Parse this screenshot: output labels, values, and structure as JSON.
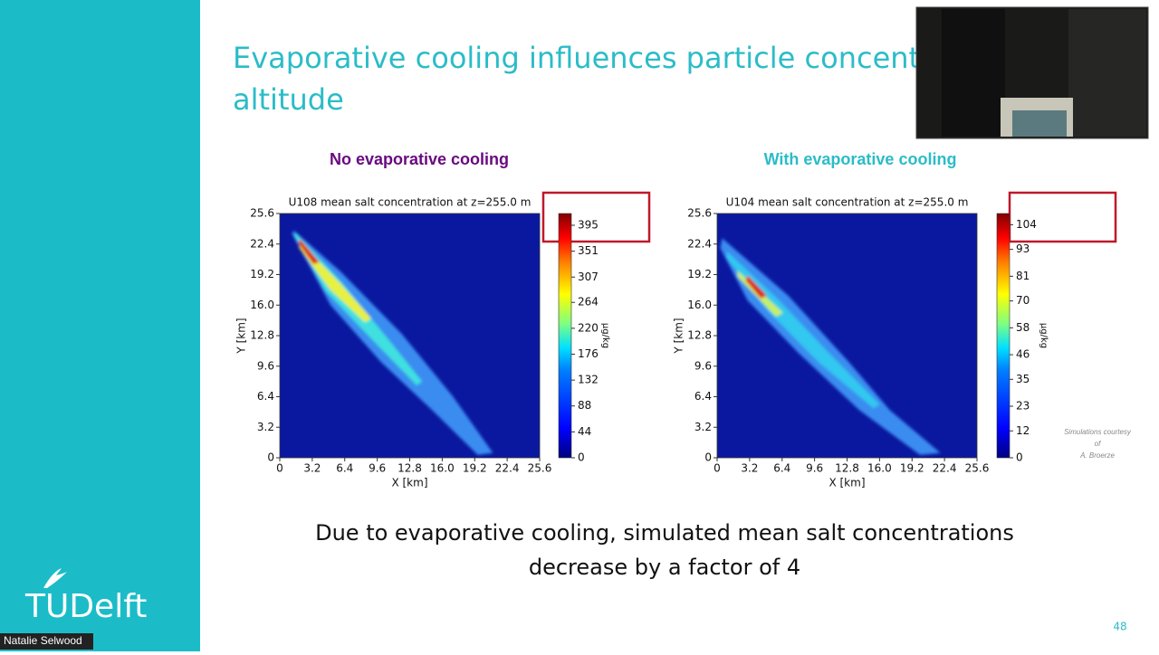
{
  "slide": {
    "title_lines": [
      "Evaporative cooling influences particle concentra",
      "altitude"
    ],
    "panel_headings": [
      "No evaporative cooling",
      "With evaporative cooling"
    ],
    "caption_lines": [
      "Due to evaporative cooling, simulated mean salt concentrations",
      "decrease by a factor of 4"
    ],
    "credit_lines": [
      "Simulations courtesy",
      "of",
      "A. Broerze"
    ],
    "page_number": "48",
    "logo": "TUDelft"
  },
  "participant": {
    "name": "Natalie Selwood"
  },
  "chart_data": [
    {
      "type": "heatmap",
      "title": "U108 mean salt concentration at z=255.0 m",
      "xlabel": "X [km]",
      "ylabel": "Y [km]",
      "xlim": [
        0,
        25.6
      ],
      "ylim": [
        0,
        25.6
      ],
      "xticks": [
        0,
        3.2,
        6.4,
        9.6,
        12.8,
        {
          "value": 16,
          "label": "16.0"
        },
        19.2,
        22.4,
        25.6
      ],
      "yticks": [
        0,
        3.2,
        6.4,
        9.6,
        12.8,
        {
          "value": 16,
          "label": "16.0"
        },
        19.2,
        22.4,
        25.6
      ],
      "colorbar": {
        "label": "µg/kg",
        "lim": [
          0,
          415
        ],
        "ticks": [
          0,
          44,
          88,
          132,
          176,
          220,
          264,
          307,
          351,
          395
        ]
      }
    },
    {
      "type": "heatmap",
      "title": "U104 mean salt concentration at z=255.0 m",
      "xlabel": "X [km]",
      "ylabel": "Y [km]",
      "xlim": [
        0,
        25.6
      ],
      "ylim": [
        0,
        25.6
      ],
      "xticks": [
        0,
        3.2,
        6.4,
        9.6,
        12.8,
        {
          "value": 16,
          "label": "16.0"
        },
        19.2,
        22.4,
        25.6
      ],
      "yticks": [
        0,
        3.2,
        6.4,
        9.6,
        12.8,
        {
          "value": 16,
          "label": "16.0"
        },
        19.2,
        22.4,
        25.6
      ],
      "colorbar": {
        "label": "µg/kg",
        "lim": [
          0,
          109
        ],
        "ticks": [
          0,
          12,
          23,
          35,
          46,
          58,
          70,
          81,
          93,
          104
        ]
      }
    }
  ]
}
